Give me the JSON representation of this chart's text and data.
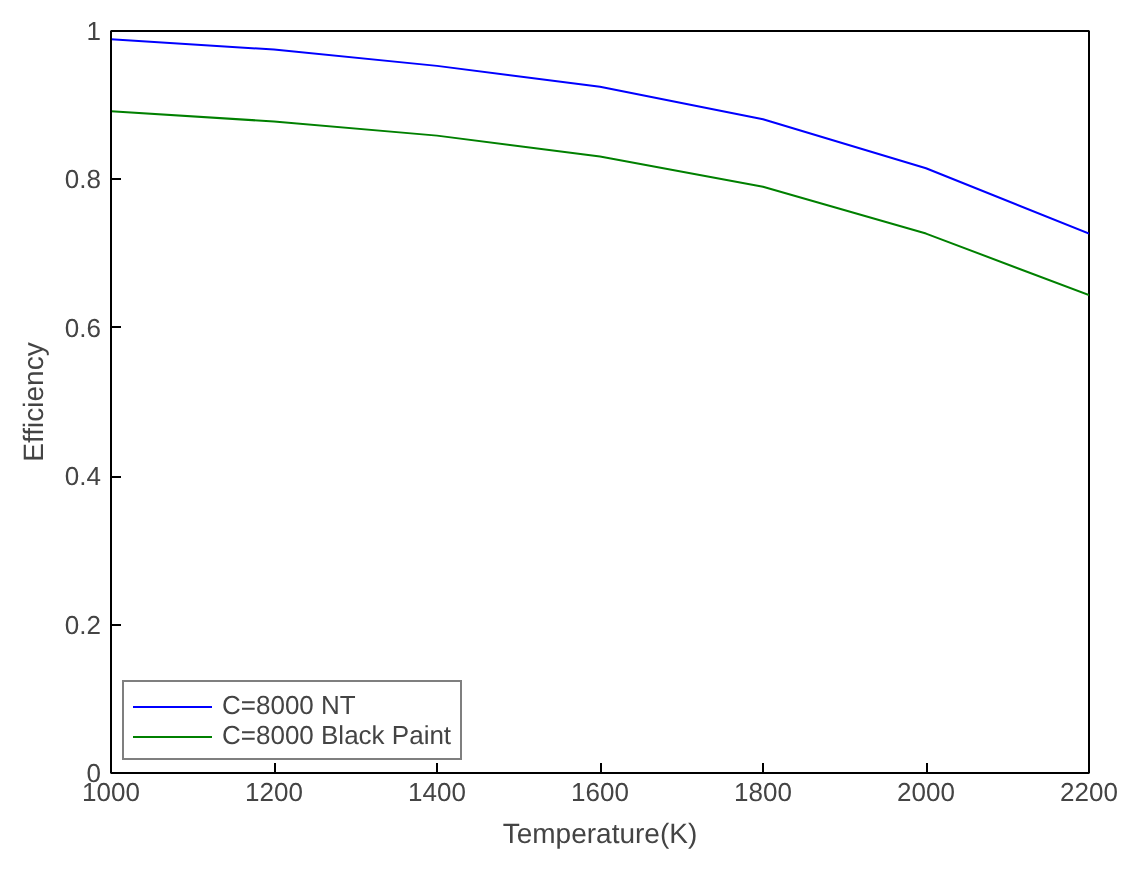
{
  "chart_data": {
    "type": "line",
    "xlabel": "Temperature(K)",
    "ylabel": "Efficiency",
    "x": [
      1000,
      1200,
      1400,
      1600,
      1800,
      2000,
      2200
    ],
    "series": [
      {
        "name": "C=8000 NT",
        "color": "#0000ff",
        "values": [
          0.989,
          0.975,
          0.953,
          0.925,
          0.881,
          0.815,
          0.727
        ]
      },
      {
        "name": "C=8000 Black Paint",
        "color": "#008000",
        "values": [
          0.892,
          0.878,
          0.859,
          0.831,
          0.79,
          0.727,
          0.644
        ]
      }
    ],
    "xlim": [
      1000,
      2200
    ],
    "ylim": [
      0,
      1
    ],
    "xticks": [
      1000,
      1200,
      1400,
      1600,
      1800,
      2000,
      2200
    ],
    "yticks": [
      0,
      0.2,
      0.4,
      0.6,
      0.8,
      1
    ],
    "grid": false,
    "legend": "bottom left",
    "marker": "none",
    "line_style": "solid"
  }
}
